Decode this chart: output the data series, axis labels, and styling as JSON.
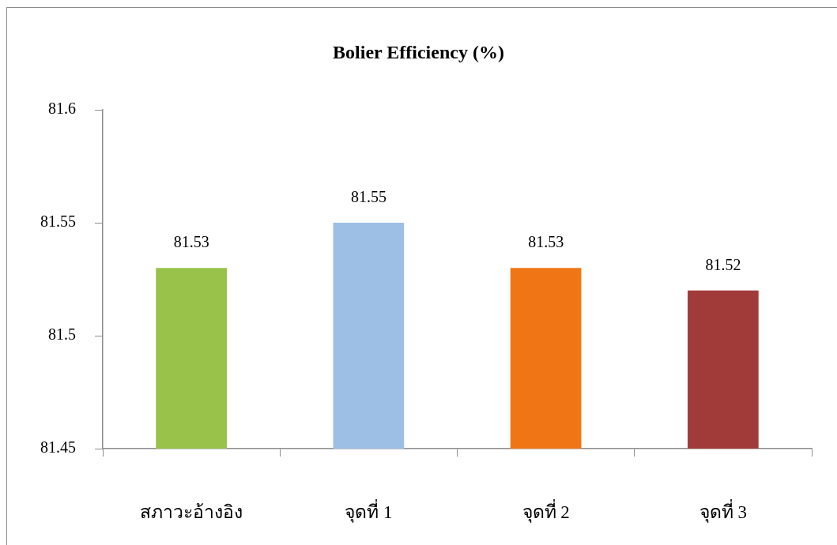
{
  "chart_data": {
    "type": "bar",
    "title": "Bolier Efficiency (%)",
    "categories": [
      "สภาวะอ้างอิง",
      "จุดที่ 1",
      "จุดที่ 2",
      "จุดที่ 3"
    ],
    "values": [
      81.53,
      81.55,
      81.53,
      81.52
    ],
    "colors": [
      "#98c24a",
      "#9dbfe5",
      "#f07615",
      "#a13b3a"
    ],
    "ylim": [
      81.45,
      81.6
    ],
    "yticks": [
      81.45,
      81.5,
      81.55,
      81.6
    ],
    "data_labels": true
  }
}
